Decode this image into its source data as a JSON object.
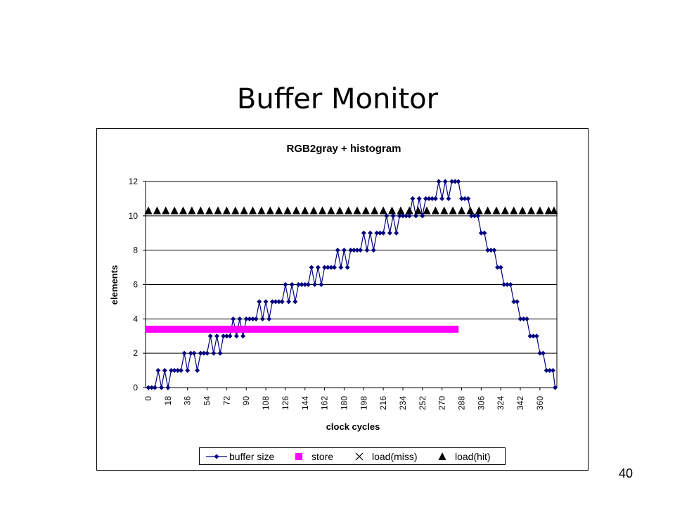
{
  "slide": {
    "title": "Buffer Monitor",
    "page_number": "40"
  },
  "chart_data": {
    "type": "line",
    "title": "RGB2gray + histogram",
    "x_label": "clock cycles",
    "y_label": "elements",
    "xlim": [
      -2.6,
      375.6
    ],
    "ylim": [
      0,
      12
    ],
    "xticks": [
      0,
      18,
      36,
      54,
      72,
      90,
      108,
      126,
      144,
      162,
      180,
      198,
      216,
      234,
      252,
      270,
      288,
      306,
      324,
      342,
      360
    ],
    "yticks": [
      0,
      2,
      4,
      6,
      8,
      10,
      12
    ],
    "grid": true,
    "series": [
      {
        "name": "buffer size",
        "color": "#000080",
        "marker": "diamond",
        "line": true,
        "x": [
          0,
          3,
          6,
          9,
          12,
          15,
          18,
          21,
          24,
          27,
          30,
          33,
          36,
          39,
          42,
          45,
          48,
          51,
          54,
          57,
          60,
          63,
          66,
          69,
          72,
          75,
          78,
          81,
          84,
          87,
          90,
          93,
          96,
          99,
          102,
          105,
          108,
          111,
          114,
          117,
          120,
          123,
          126,
          129,
          132,
          135,
          138,
          141,
          144,
          147,
          150,
          153,
          156,
          159,
          162,
          165,
          168,
          171,
          174,
          177,
          180,
          183,
          186,
          189,
          192,
          195,
          198,
          201,
          204,
          207,
          210,
          213,
          216,
          219,
          222,
          225,
          228,
          231,
          234,
          237,
          240,
          243,
          246,
          249,
          252,
          255,
          258,
          261,
          264,
          267,
          270,
          273,
          276,
          279,
          282,
          285,
          288,
          291,
          294,
          297,
          300,
          303,
          306,
          309,
          312,
          315,
          318,
          321,
          324,
          327,
          330,
          333,
          336,
          339,
          342,
          345,
          348,
          351,
          354,
          357,
          360,
          363,
          366,
          369,
          372,
          374
        ],
        "values": [
          0,
          0,
          0,
          1,
          0,
          1,
          0,
          1,
          1,
          1,
          1,
          2,
          1,
          2,
          2,
          1,
          2,
          2,
          2,
          3,
          2,
          3,
          2,
          3,
          3,
          3,
          4,
          3,
          4,
          3,
          4,
          4,
          4,
          4,
          5,
          4,
          5,
          4,
          5,
          5,
          5,
          5,
          6,
          5,
          6,
          5,
          6,
          6,
          6,
          6,
          7,
          6,
          7,
          6,
          7,
          7,
          7,
          7,
          8,
          7,
          8,
          7,
          8,
          8,
          8,
          8,
          9,
          8,
          9,
          8,
          9,
          9,
          9,
          10,
          9,
          10,
          9,
          10,
          10,
          10,
          10,
          11,
          10,
          11,
          10,
          11,
          11,
          11,
          11,
          12,
          11,
          12,
          11,
          12,
          12,
          12,
          11,
          11,
          11,
          10,
          10,
          10,
          9,
          9,
          8,
          8,
          8,
          7,
          7,
          6,
          6,
          6,
          5,
          5,
          4,
          4,
          4,
          3,
          3,
          3,
          2,
          2,
          1,
          1,
          1,
          0
        ]
      },
      {
        "name": "store",
        "color": "#ff00ff",
        "marker": "square",
        "line": false,
        "x": [
          0,
          6,
          12,
          18,
          24,
          30,
          36,
          42,
          48,
          54,
          60,
          66,
          72,
          78,
          84,
          90,
          96,
          102,
          108,
          114,
          120,
          126,
          132,
          138,
          144,
          150,
          156,
          162,
          168,
          174,
          180,
          186,
          192,
          198,
          204,
          210,
          216,
          222,
          228,
          234,
          240,
          246,
          252,
          258,
          264,
          270,
          276,
          282
        ],
        "values": [
          3.4,
          3.4,
          3.4,
          3.4,
          3.4,
          3.4,
          3.4,
          3.4,
          3.4,
          3.4,
          3.4,
          3.4,
          3.4,
          3.4,
          3.4,
          3.4,
          3.4,
          3.4,
          3.4,
          3.4,
          3.4,
          3.4,
          3.4,
          3.4,
          3.4,
          3.4,
          3.4,
          3.4,
          3.4,
          3.4,
          3.4,
          3.4,
          3.4,
          3.4,
          3.4,
          3.4,
          3.4,
          3.4,
          3.4,
          3.4,
          3.4,
          3.4,
          3.4,
          3.4,
          3.4,
          3.4,
          3.4,
          3.4
        ]
      },
      {
        "name": "load(miss)",
        "color": "#000000",
        "marker": "x",
        "line": false,
        "x": [],
        "values": []
      },
      {
        "name": "load(hit)",
        "color": "#000000",
        "marker": "triangle",
        "line": false,
        "x": [
          0,
          8,
          16,
          24,
          32,
          40,
          48,
          56,
          64,
          72,
          80,
          88,
          96,
          104,
          112,
          120,
          128,
          136,
          144,
          152,
          160,
          168,
          176,
          184,
          192,
          200,
          208,
          216,
          224,
          232,
          240,
          248,
          256,
          264,
          272,
          280,
          288,
          296,
          304,
          312,
          320,
          328,
          336,
          344,
          352,
          360,
          368,
          373
        ],
        "values": [
          10.3,
          10.3,
          10.3,
          10.3,
          10.3,
          10.3,
          10.3,
          10.3,
          10.3,
          10.3,
          10.3,
          10.3,
          10.3,
          10.3,
          10.3,
          10.3,
          10.3,
          10.3,
          10.3,
          10.3,
          10.3,
          10.3,
          10.3,
          10.3,
          10.3,
          10.3,
          10.3,
          10.3,
          10.3,
          10.3,
          10.3,
          10.3,
          10.3,
          10.3,
          10.3,
          10.3,
          10.3,
          10.3,
          10.3,
          10.3,
          10.3,
          10.3,
          10.3,
          10.3,
          10.3,
          10.3,
          10.3,
          10.3
        ]
      }
    ]
  }
}
